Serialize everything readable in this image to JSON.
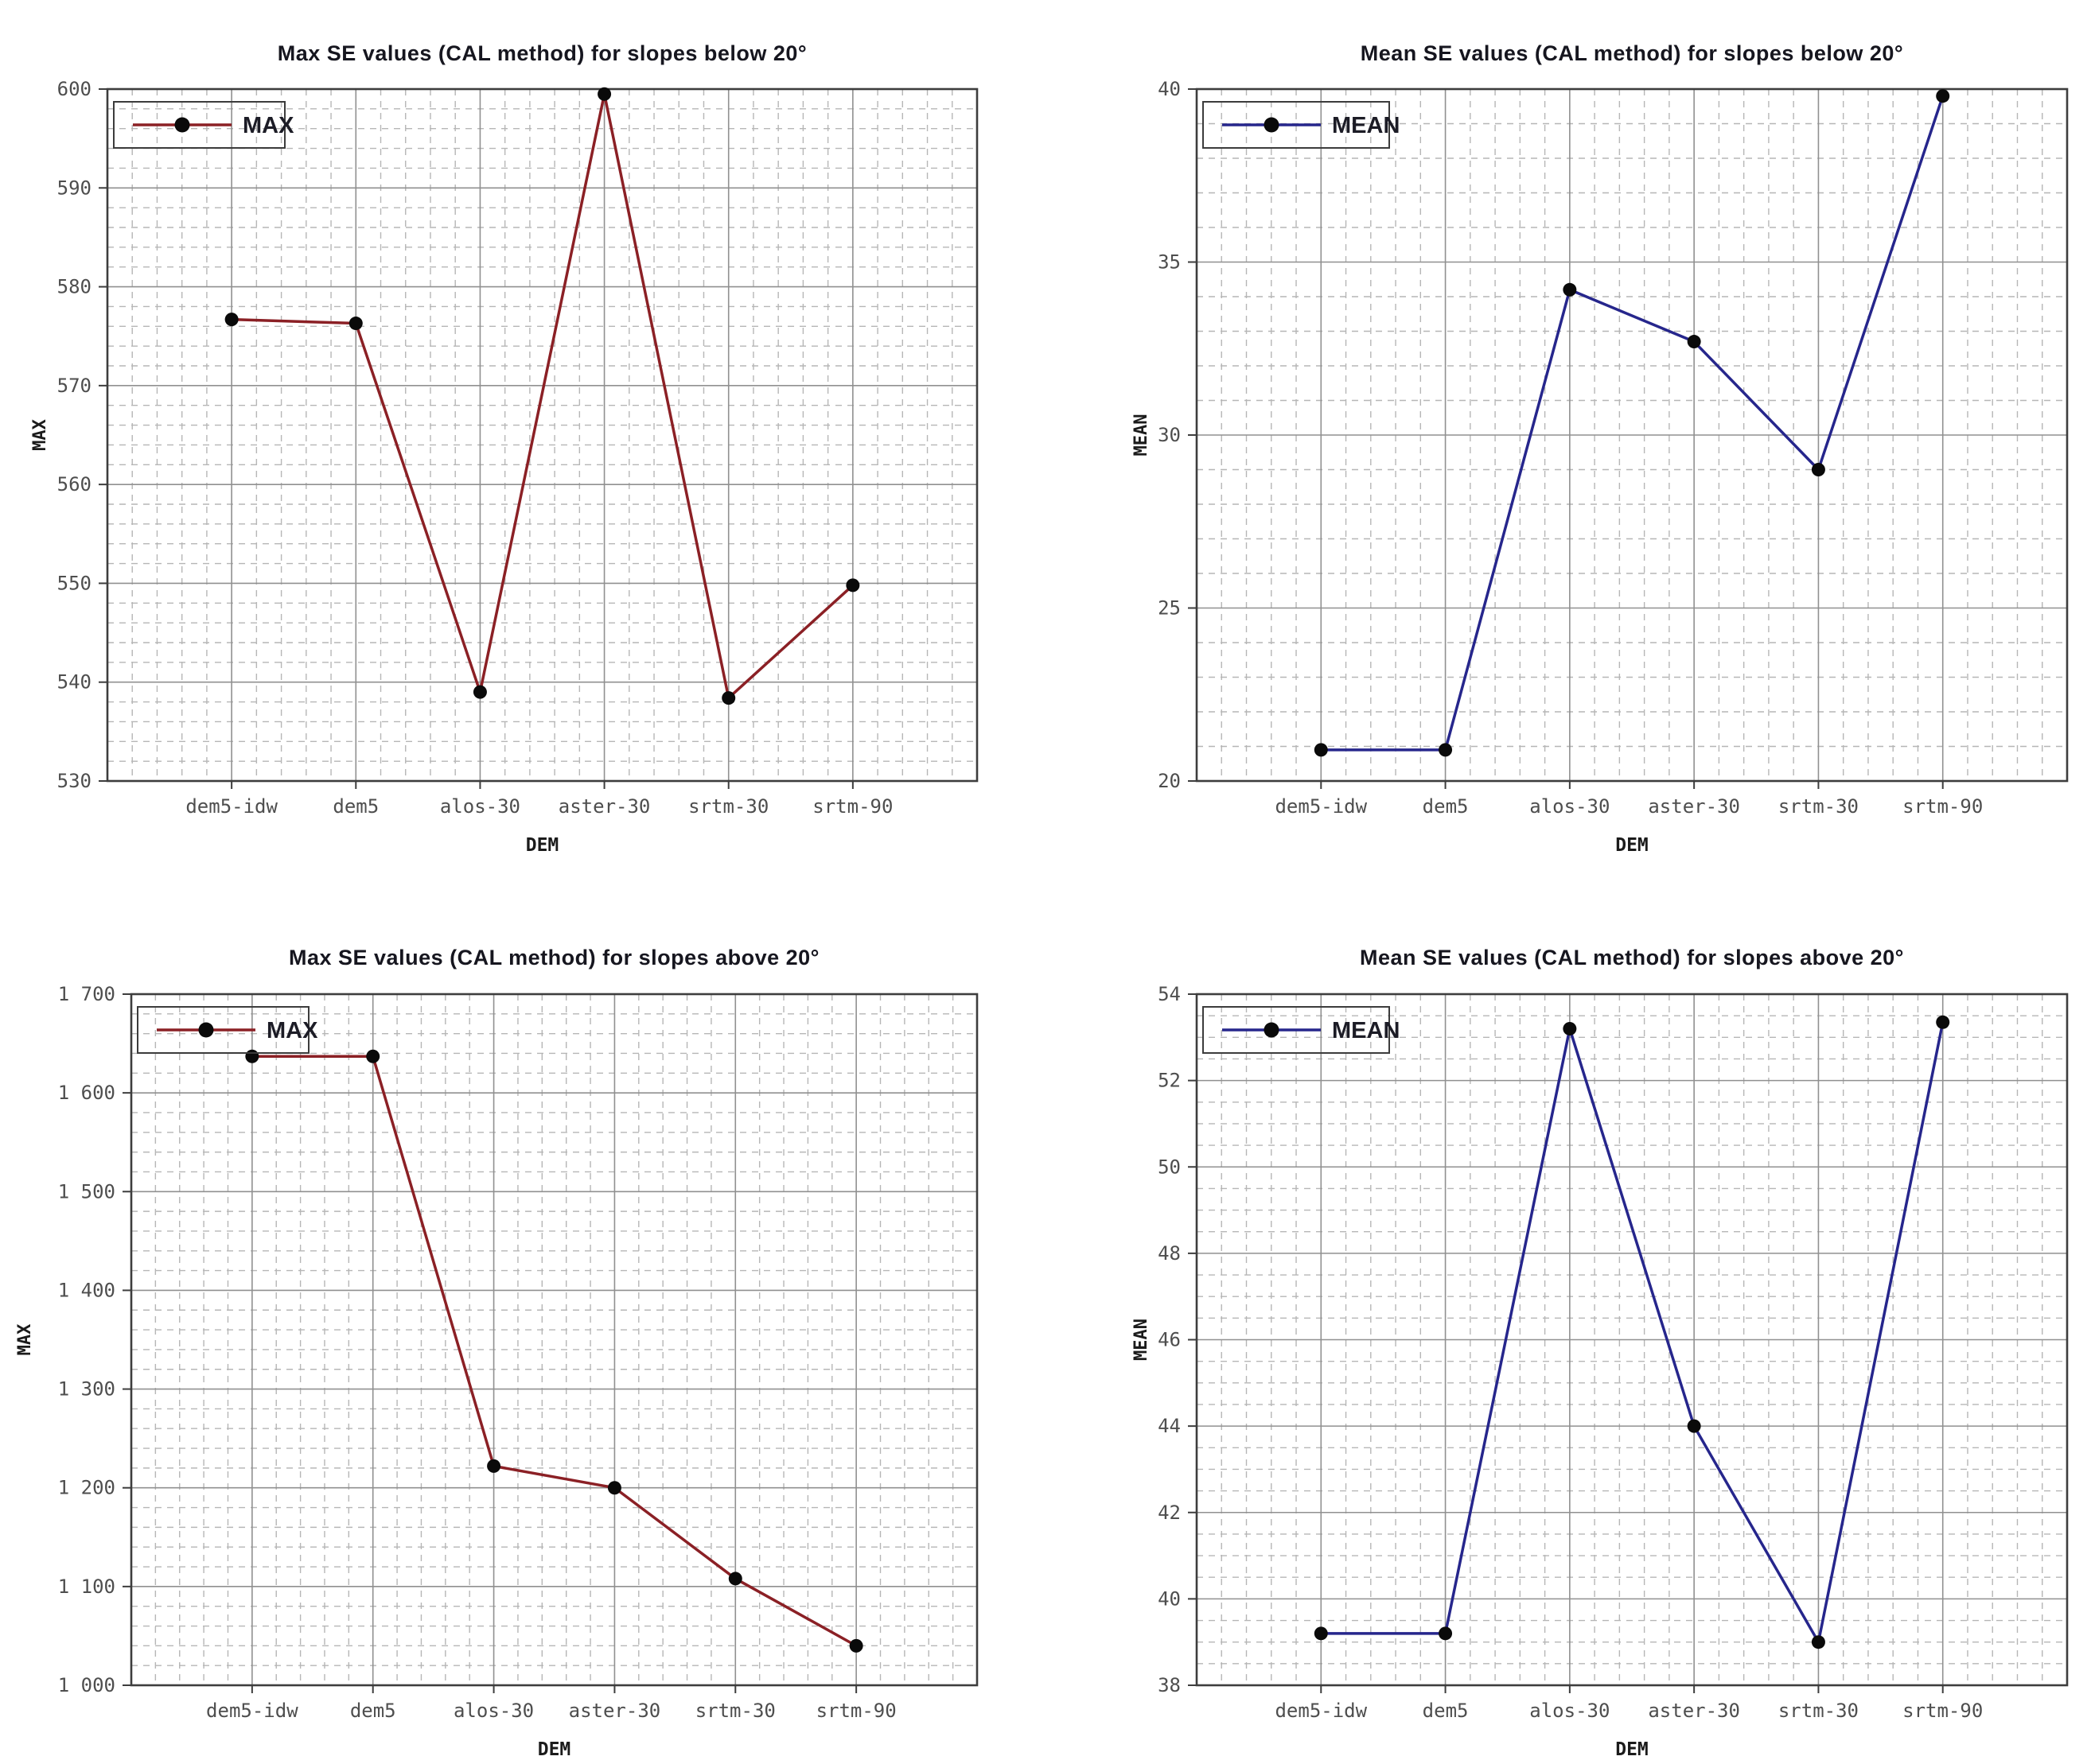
{
  "style": {
    "series_red": "#8b2025",
    "series_blue": "#26268c",
    "point_color": "#0a0a0a",
    "grid_major_color": "#909090",
    "grid_minor_color": "#b6b6b6",
    "axis_color": "#3d3d3d",
    "tick_label_color": "#4e4e4e",
    "title_color": "#16161f",
    "legend_text_color": "#1c1c26",
    "background": "#ffffff"
  },
  "chart_data": [
    {
      "type": "line",
      "title": "Max SE values (CAL method) for slopes below 20°",
      "xlabel": "DEM",
      "ylabel": "MAX",
      "categories": [
        "dem5-idw",
        "dem5",
        "alos-30",
        "aster-30",
        "srtm-30",
        "srtm-90"
      ],
      "series": [
        {
          "name": "MAX",
          "color": "#8b2025",
          "values": [
            576.7,
            576.3,
            539.0,
            599.5,
            538.4,
            549.8
          ]
        }
      ],
      "ylim": [
        530,
        600
      ],
      "y_major": 10,
      "y_minor": 2,
      "y_format": "plain",
      "grid": true,
      "legend_position": "top-left"
    },
    {
      "type": "line",
      "title": "Mean SE values (CAL method) for slopes below 20°",
      "xlabel": "DEM",
      "ylabel": "MEAN",
      "categories": [
        "dem5-idw",
        "dem5",
        "alos-30",
        "aster-30",
        "srtm-30",
        "srtm-90"
      ],
      "series": [
        {
          "name": "MEAN",
          "color": "#26268c",
          "values": [
            20.9,
            20.9,
            34.2,
            32.7,
            29.0,
            39.8
          ]
        }
      ],
      "ylim": [
        20,
        40
      ],
      "y_major": 5,
      "y_minor": 1,
      "y_format": "plain",
      "grid": true,
      "legend_position": "top-left"
    },
    {
      "type": "line",
      "title": "Max SE values (CAL method) for slopes above 20°",
      "xlabel": "DEM",
      "ylabel": "MAX",
      "categories": [
        "dem5-idw",
        "dem5",
        "alos-30",
        "aster-30",
        "srtm-30",
        "srtm-90"
      ],
      "series": [
        {
          "name": "MAX",
          "color": "#8b2025",
          "values": [
            1637,
            1637,
            1222,
            1200,
            1108,
            1040
          ]
        }
      ],
      "ylim": [
        1000,
        1700
      ],
      "y_major": 100,
      "y_minor": 20,
      "y_format": "space-thousands",
      "grid": true,
      "legend_position": "top-left"
    },
    {
      "type": "line",
      "title": "Mean SE values (CAL method) for slopes above 20°",
      "xlabel": "DEM",
      "ylabel": "MEAN",
      "categories": [
        "dem5-idw",
        "dem5",
        "alos-30",
        "aster-30",
        "srtm-30",
        "srtm-90"
      ],
      "series": [
        {
          "name": "MEAN",
          "color": "#26268c",
          "values": [
            39.2,
            39.2,
            53.2,
            44.0,
            39.0,
            53.35
          ]
        }
      ],
      "ylim": [
        38,
        54
      ],
      "y_major": 2,
      "y_minor": 0.5,
      "y_format": "plain",
      "grid": true,
      "legend_position": "top-left"
    }
  ]
}
